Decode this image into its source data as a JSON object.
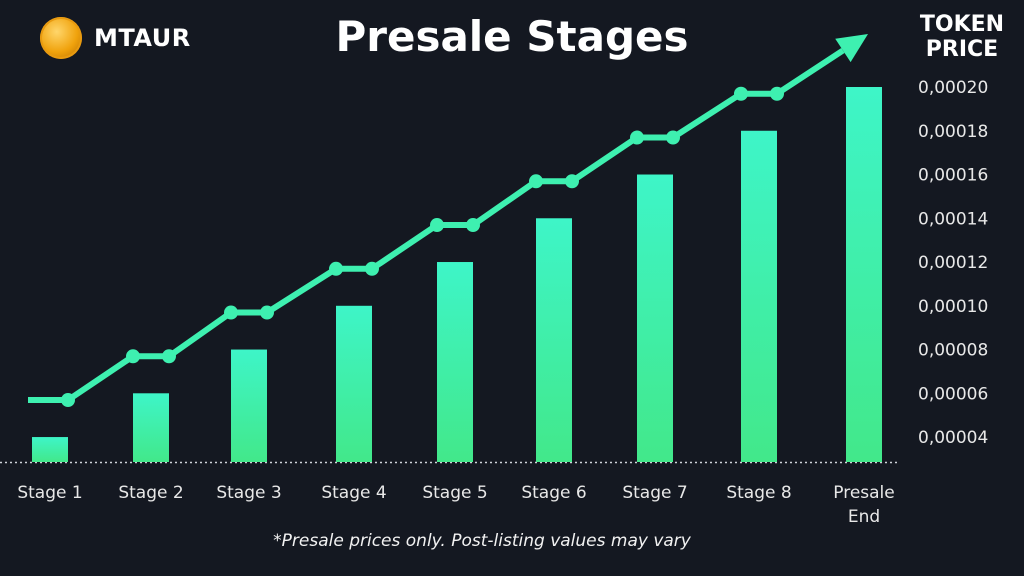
{
  "brand": {
    "name": "MTAUR",
    "icon": "gold-coin-logo"
  },
  "title": "Presale Stages",
  "footnote": "*Presale prices only. Post-listing values may vary",
  "colors": {
    "background": "#141821",
    "bar_top": "#3ef5c8",
    "bar_bottom": "#42e88a",
    "line": "#3ef0b0"
  },
  "chart_data": {
    "type": "bar",
    "title": "Presale Stages",
    "ylabel": "TOKEN PRICE",
    "categories": [
      "Stage 1",
      "Stage 2",
      "Stage 3",
      "Stage 4",
      "Stage 5",
      "Stage 6",
      "Stage 7",
      "Stage 8",
      "Presale End"
    ],
    "category_lines": [
      [
        "Stage 1"
      ],
      [
        "Stage 2"
      ],
      [
        "Stage 3"
      ],
      [
        "Stage 4"
      ],
      [
        "Stage 5"
      ],
      [
        "Stage 6"
      ],
      [
        "Stage 7"
      ],
      [
        "Stage 8"
      ],
      [
        "Presale",
        "End"
      ]
    ],
    "values": [
      4e-05,
      6e-05,
      8e-05,
      0.0001,
      0.00012,
      0.00014,
      0.00016,
      0.00018,
      0.0002
    ],
    "yticks": [
      "0,00020",
      "0,00018",
      "0,00016",
      "0,00014",
      "0,00012",
      "0,00010",
      "0,00008",
      "0,00006",
      "0,00004"
    ],
    "ytick_values": [
      0.0002,
      0.00018,
      0.00016,
      0.00014,
      0.00012,
      0.0001,
      8e-05,
      6e-05,
      4e-05
    ],
    "ylim": [
      2.86e-05,
      0.0002
    ],
    "yaxis_position": "right",
    "grid": false,
    "trend_arrow": "upward line with arrowhead above bars"
  }
}
